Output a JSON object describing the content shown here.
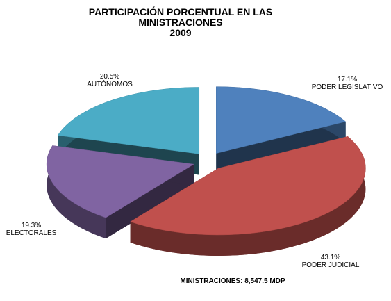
{
  "chart_data": {
    "type": "pie3d",
    "title": "PARTICIPACIÓN PORCENTUAL  EN LAS MINISTRACIONES",
    "subtitle": "2009",
    "categories": [
      "PODER LEGISLATIVO",
      "PODER JUDICIAL",
      "ELECTORALES",
      "AUTÓNOMOS"
    ],
    "values": [
      17.1,
      43.1,
      19.3,
      20.5
    ],
    "value_labels": [
      "17.1%",
      "43.1%",
      "19.3%",
      "20.5%"
    ],
    "colors": [
      "#4f81bd",
      "#c0504d",
      "#8064a2",
      "#4bacc6"
    ],
    "annotation": "MINISTRACIONES: 8,547.5 MDP"
  }
}
